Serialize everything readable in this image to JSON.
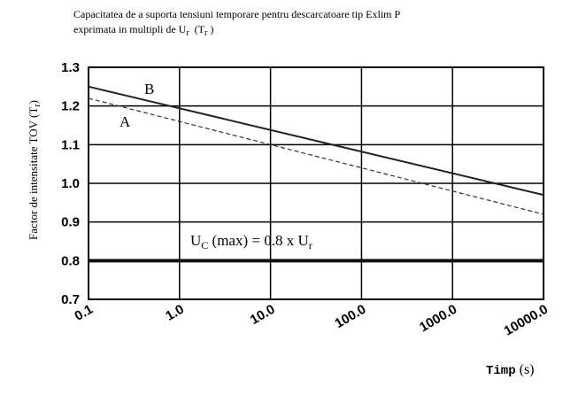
{
  "chart_data": {
    "type": "line",
    "title": [
      "Capacitatea de a suporta tensiuni temporare pentru descarcatoare tip Exlim P",
      "exprimata in multipli de U",
      "r",
      "(T",
      "r",
      " )"
    ],
    "ylabel": [
      "Factor de intensitate TOV (T",
      "r",
      ")"
    ],
    "xlabel": [
      "Timp",
      "(s)"
    ],
    "xscale": "log",
    "x": [
      0.1,
      10000
    ],
    "series": [
      {
        "name": "A",
        "color": "#333333",
        "dash": true,
        "values": [
          1.22,
          0.92
        ]
      },
      {
        "name": "B",
        "color": "#222222",
        "values": [
          1.25,
          0.97
        ]
      },
      {
        "color": "#111111",
        "values": [
          0.8,
          0.8
        ]
      }
    ],
    "annotation": [
      "U",
      "C",
      " (max) = 0.8 x U",
      "r"
    ],
    "xlim": [
      0.1,
      10000
    ],
    "xticks": [
      0.1,
      {
        "value": 1,
        "label": "1.0"
      },
      {
        "value": 10,
        "label": "10.0"
      },
      {
        "value": 100,
        "label": "100.0"
      },
      {
        "value": 1000,
        "label": "1000.0"
      },
      {
        "value": 10000,
        "label": "10000.0"
      }
    ],
    "ylim": [
      0.7,
      1.3
    ],
    "yticks": [
      0.7,
      {
        "value": 0.8,
        "label": "0.8"
      },
      0.9,
      {
        "value": 1.0,
        "label": "1.0"
      },
      1.1,
      1.2,
      1.3
    ],
    "grid": true
  }
}
